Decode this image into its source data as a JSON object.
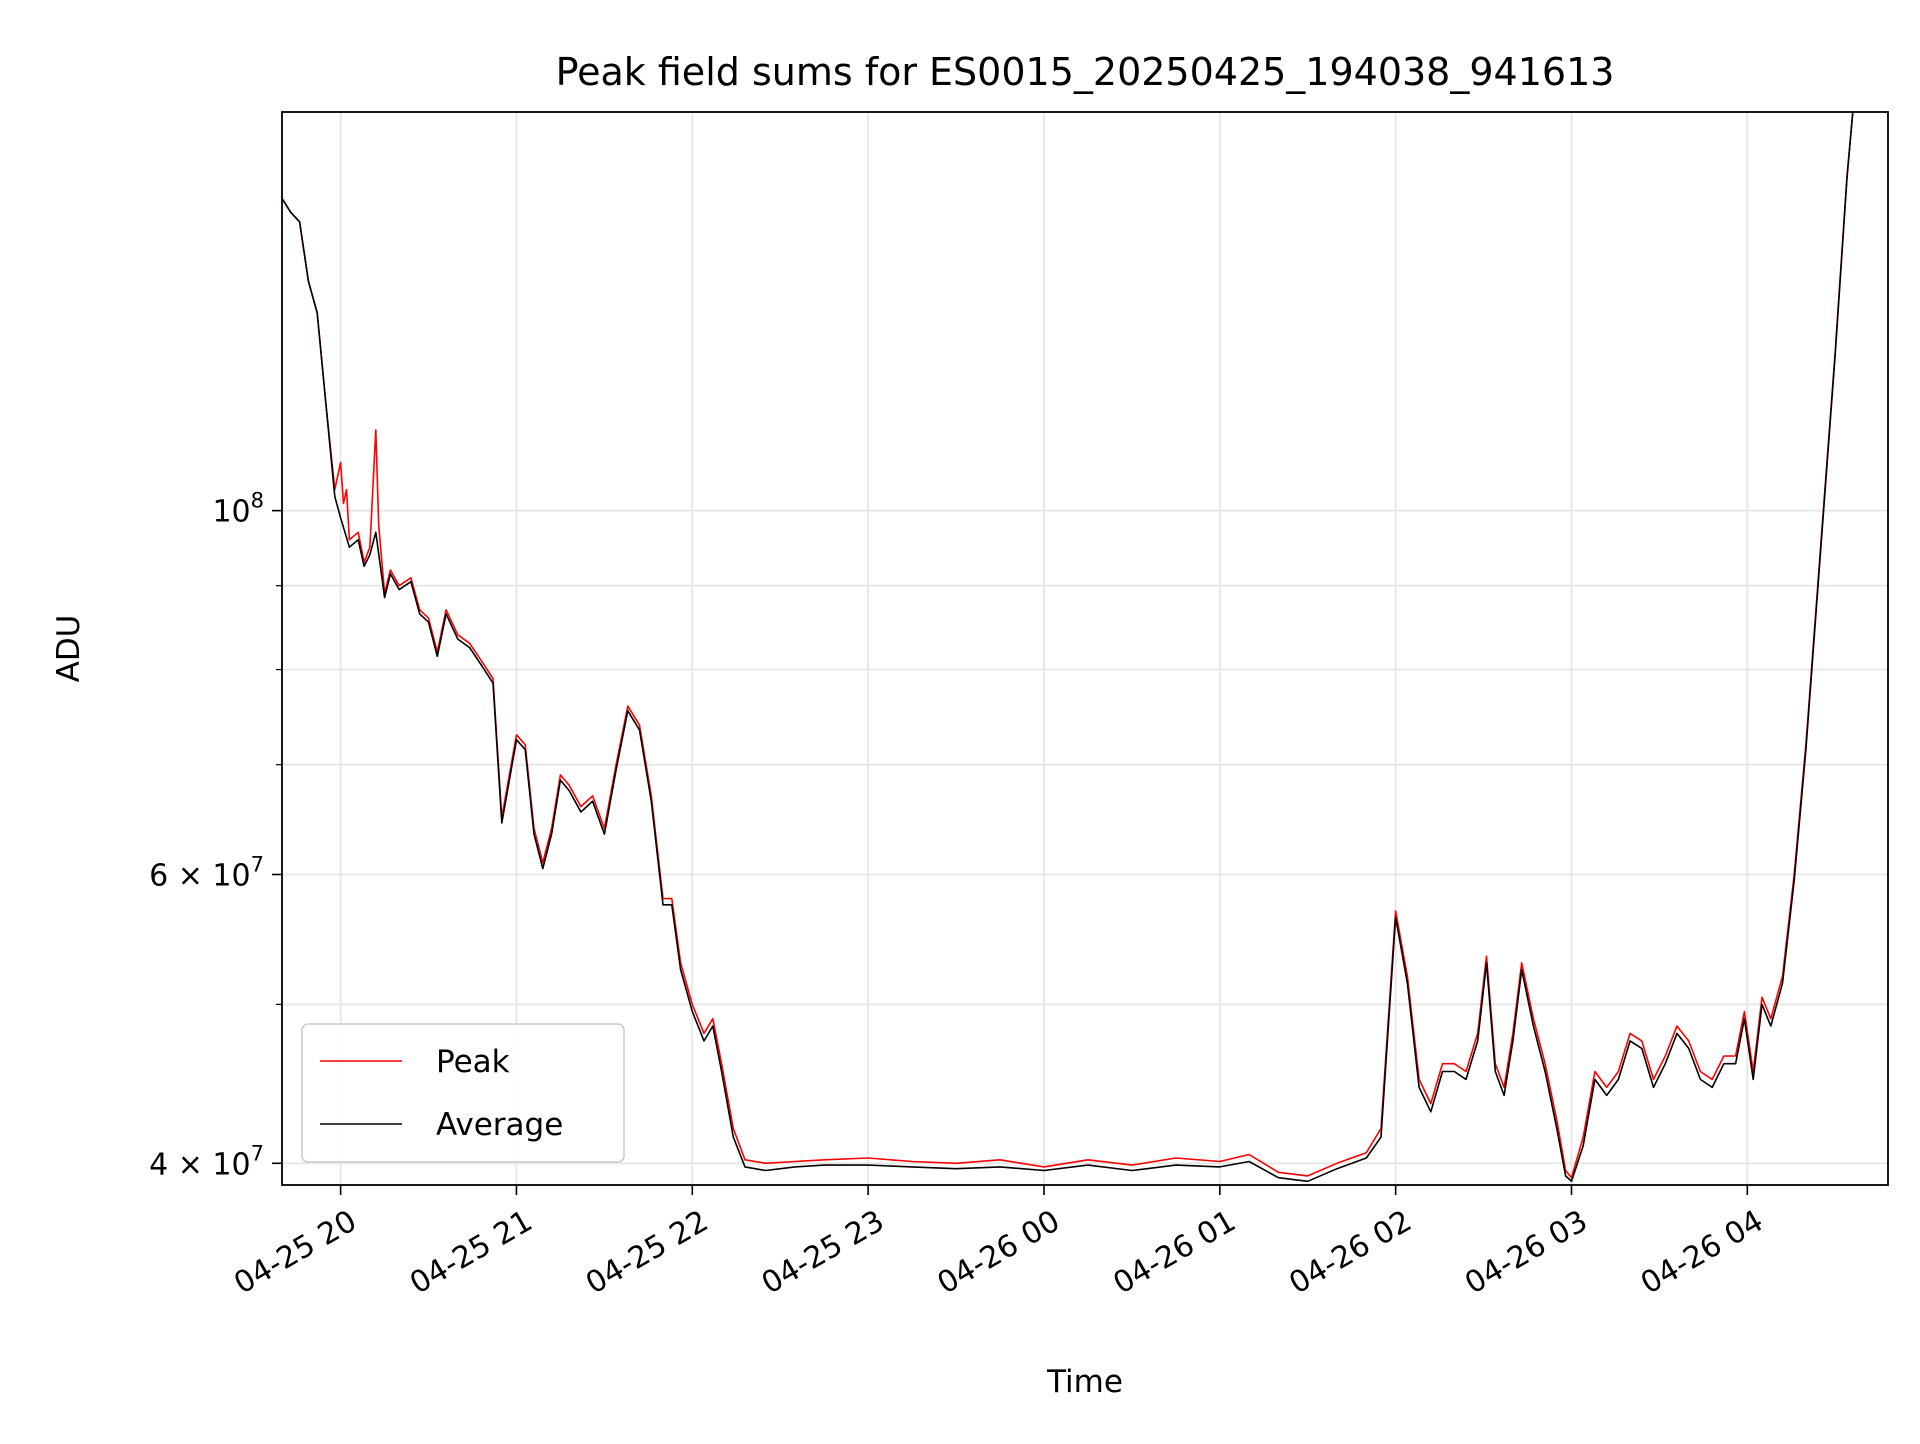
{
  "chart_data": {
    "type": "line",
    "title": "Peak field sums for ES0015_20250425_194038_941613",
    "xlabel": "Time",
    "ylabel": "ADU",
    "y_scale": "log",
    "ylim": [
      38800000,
      175000000
    ],
    "xlim": [
      "2025-04-25 19:40",
      "2025-04-26 04:48"
    ],
    "grid": true,
    "legend_position": "lower-left",
    "x_ticks": [
      {
        "t": "2025-04-25 20:00",
        "label": "04-25 20"
      },
      {
        "t": "2025-04-25 21:00",
        "label": "04-25 21"
      },
      {
        "t": "2025-04-25 22:00",
        "label": "04-25 22"
      },
      {
        "t": "2025-04-25 23:00",
        "label": "04-25 23"
      },
      {
        "t": "2025-04-26 00:00",
        "label": "04-26 00"
      },
      {
        "t": "2025-04-26 01:00",
        "label": "04-26 01"
      },
      {
        "t": "2025-04-26 02:00",
        "label": "04-26 02"
      },
      {
        "t": "2025-04-26 03:00",
        "label": "04-26 03"
      },
      {
        "t": "2025-04-26 04:00",
        "label": "04-26 04"
      }
    ],
    "y_major_ticks": [
      {
        "v": 40000000,
        "base": "4",
        "exp": "7"
      },
      {
        "v": 60000000,
        "base": "6",
        "exp": "7"
      },
      {
        "v": 100000000,
        "base": "",
        "exp": "8"
      }
    ],
    "y_minor_ticks": [
      50000000,
      70000000,
      80000000,
      90000000
    ],
    "series": [
      {
        "name": "Peak",
        "color": "#ff0000",
        "points": [
          [
            "2025-04-25 19:40",
            155000000
          ],
          [
            "2025-04-25 19:43",
            152000000
          ],
          [
            "2025-04-25 19:46",
            150000000
          ],
          [
            "2025-04-25 19:49",
            138000000
          ],
          [
            "2025-04-25 19:52",
            132000000
          ],
          [
            "2025-04-25 19:55",
            116000000
          ],
          [
            "2025-04-25 19:58",
            103000000
          ],
          [
            "2025-04-25 20:00",
            107000000
          ],
          [
            "2025-04-25 20:01",
            101000000
          ],
          [
            "2025-04-25 20:02",
            103000000
          ],
          [
            "2025-04-25 20:03",
            96000000
          ],
          [
            "2025-04-25 20:06",
            97000000
          ],
          [
            "2025-04-25 20:08",
            93000000
          ],
          [
            "2025-04-25 20:10",
            95000000
          ],
          [
            "2025-04-25 20:12",
            112000000
          ],
          [
            "2025-04-25 20:13",
            98000000
          ],
          [
            "2025-04-25 20:15",
            89000000
          ],
          [
            "2025-04-25 20:17",
            92000000
          ],
          [
            "2025-04-25 20:20",
            90000000
          ],
          [
            "2025-04-25 20:24",
            91000000
          ],
          [
            "2025-04-25 20:27",
            87000000
          ],
          [
            "2025-04-25 20:30",
            86000000
          ],
          [
            "2025-04-25 20:33",
            82000000
          ],
          [
            "2025-04-25 20:36",
            87000000
          ],
          [
            "2025-04-25 20:40",
            84000000
          ],
          [
            "2025-04-25 20:44",
            83000000
          ],
          [
            "2025-04-25 20:48",
            81000000
          ],
          [
            "2025-04-25 20:52",
            79000000
          ],
          [
            "2025-04-25 20:55",
            65000000
          ],
          [
            "2025-04-25 21:00",
            73000000
          ],
          [
            "2025-04-25 21:03",
            72000000
          ],
          [
            "2025-04-25 21:06",
            64000000
          ],
          [
            "2025-04-25 21:09",
            61000000
          ],
          [
            "2025-04-25 21:12",
            64000000
          ],
          [
            "2025-04-25 21:15",
            69000000
          ],
          [
            "2025-04-25 21:18",
            68000000
          ],
          [
            "2025-04-25 21:22",
            66000000
          ],
          [
            "2025-04-25 21:26",
            67000000
          ],
          [
            "2025-04-25 21:30",
            64000000
          ],
          [
            "2025-04-25 21:34",
            70000000
          ],
          [
            "2025-04-25 21:38",
            76000000
          ],
          [
            "2025-04-25 21:42",
            74000000
          ],
          [
            "2025-04-25 21:46",
            67000000
          ],
          [
            "2025-04-25 21:50",
            58000000
          ],
          [
            "2025-04-25 21:53",
            58000000
          ],
          [
            "2025-04-25 21:56",
            53000000
          ],
          [
            "2025-04-25 22:00",
            50000000
          ],
          [
            "2025-04-25 22:04",
            48000000
          ],
          [
            "2025-04-25 22:07",
            49000000
          ],
          [
            "2025-04-25 22:10",
            46000000
          ],
          [
            "2025-04-25 22:14",
            42000000
          ],
          [
            "2025-04-25 22:18",
            40200000
          ],
          [
            "2025-04-25 22:25",
            40000000
          ],
          [
            "2025-04-25 22:35",
            40100000
          ],
          [
            "2025-04-25 22:45",
            40200000
          ],
          [
            "2025-04-25 23:00",
            40300000
          ],
          [
            "2025-04-25 23:15",
            40100000
          ],
          [
            "2025-04-25 23:30",
            40000000
          ],
          [
            "2025-04-25 23:45",
            40200000
          ],
          [
            "2025-04-26 00:00",
            39800000
          ],
          [
            "2025-04-26 00:15",
            40200000
          ],
          [
            "2025-04-26 00:30",
            39900000
          ],
          [
            "2025-04-26 00:45",
            40300000
          ],
          [
            "2025-04-26 01:00",
            40100000
          ],
          [
            "2025-04-26 01:10",
            40500000
          ],
          [
            "2025-04-26 01:20",
            39500000
          ],
          [
            "2025-04-26 01:30",
            39300000
          ],
          [
            "2025-04-26 01:40",
            40000000
          ],
          [
            "2025-04-26 01:50",
            40600000
          ],
          [
            "2025-04-26 01:55",
            42000000
          ],
          [
            "2025-04-26 02:00",
            57000000
          ],
          [
            "2025-04-26 02:04",
            52000000
          ],
          [
            "2025-04-26 02:08",
            45000000
          ],
          [
            "2025-04-26 02:12",
            43500000
          ],
          [
            "2025-04-26 02:16",
            46000000
          ],
          [
            "2025-04-26 02:20",
            46000000
          ],
          [
            "2025-04-26 02:24",
            45500000
          ],
          [
            "2025-04-26 02:28",
            48000000
          ],
          [
            "2025-04-26 02:31",
            53500000
          ],
          [
            "2025-04-26 02:34",
            46000000
          ],
          [
            "2025-04-26 02:37",
            44500000
          ],
          [
            "2025-04-26 02:40",
            48000000
          ],
          [
            "2025-04-26 02:43",
            53000000
          ],
          [
            "2025-04-26 02:47",
            49000000
          ],
          [
            "2025-04-26 02:51",
            46000000
          ],
          [
            "2025-04-26 02:55",
            42500000
          ],
          [
            "2025-04-26 02:58",
            39600000
          ],
          [
            "2025-04-26 03:00",
            39200000
          ],
          [
            "2025-04-26 03:04",
            41500000
          ],
          [
            "2025-04-26 03:08",
            45500000
          ],
          [
            "2025-04-26 03:12",
            44500000
          ],
          [
            "2025-04-26 03:16",
            45500000
          ],
          [
            "2025-04-26 03:20",
            48000000
          ],
          [
            "2025-04-26 03:24",
            47500000
          ],
          [
            "2025-04-26 03:28",
            45000000
          ],
          [
            "2025-04-26 03:32",
            46500000
          ],
          [
            "2025-04-26 03:36",
            48500000
          ],
          [
            "2025-04-26 03:40",
            47500000
          ],
          [
            "2025-04-26 03:44",
            45500000
          ],
          [
            "2025-04-26 03:48",
            45000000
          ],
          [
            "2025-04-26 03:52",
            46500000
          ],
          [
            "2025-04-26 03:56",
            46500000
          ],
          [
            "2025-04-26 03:59",
            49500000
          ],
          [
            "2025-04-26 04:02",
            45500000
          ],
          [
            "2025-04-26 04:05",
            50500000
          ],
          [
            "2025-04-26 04:08",
            49000000
          ],
          [
            "2025-04-26 04:12",
            52000000
          ],
          [
            "2025-04-26 04:16",
            60000000
          ],
          [
            "2025-04-26 04:20",
            72000000
          ],
          [
            "2025-04-26 04:25",
            95000000
          ],
          [
            "2025-04-26 04:30",
            125000000
          ],
          [
            "2025-04-26 04:34",
            160000000
          ],
          [
            "2025-04-26 04:36",
            175000000
          ]
        ]
      },
      {
        "name": "Average",
        "color": "#000000",
        "points": [
          [
            "2025-04-25 19:40",
            155000000
          ],
          [
            "2025-04-25 19:43",
            152000000
          ],
          [
            "2025-04-25 19:46",
            150000000
          ],
          [
            "2025-04-25 19:49",
            138000000
          ],
          [
            "2025-04-25 19:52",
            132000000
          ],
          [
            "2025-04-25 19:55",
            116000000
          ],
          [
            "2025-04-25 19:58",
            102000000
          ],
          [
            "2025-04-25 20:00",
            99000000
          ],
          [
            "2025-04-25 20:03",
            95000000
          ],
          [
            "2025-04-25 20:06",
            96000000
          ],
          [
            "2025-04-25 20:08",
            92500000
          ],
          [
            "2025-04-25 20:10",
            94000000
          ],
          [
            "2025-04-25 20:12",
            97000000
          ],
          [
            "2025-04-25 20:15",
            88500000
          ],
          [
            "2025-04-25 20:17",
            91500000
          ],
          [
            "2025-04-25 20:20",
            89500000
          ],
          [
            "2025-04-25 20:24",
            90500000
          ],
          [
            "2025-04-25 20:27",
            86500000
          ],
          [
            "2025-04-25 20:30",
            85500000
          ],
          [
            "2025-04-25 20:33",
            81500000
          ],
          [
            "2025-04-25 20:36",
            86500000
          ],
          [
            "2025-04-25 20:40",
            83500000
          ],
          [
            "2025-04-25 20:44",
            82500000
          ],
          [
            "2025-04-25 20:48",
            80500000
          ],
          [
            "2025-04-25 20:52",
            78500000
          ],
          [
            "2025-04-25 20:55",
            64500000
          ],
          [
            "2025-04-25 21:00",
            72500000
          ],
          [
            "2025-04-25 21:03",
            71500000
          ],
          [
            "2025-04-25 21:06",
            63500000
          ],
          [
            "2025-04-25 21:09",
            60500000
          ],
          [
            "2025-04-25 21:12",
            63500000
          ],
          [
            "2025-04-25 21:15",
            68500000
          ],
          [
            "2025-04-25 21:18",
            67500000
          ],
          [
            "2025-04-25 21:22",
            65500000
          ],
          [
            "2025-04-25 21:26",
            66500000
          ],
          [
            "2025-04-25 21:30",
            63500000
          ],
          [
            "2025-04-25 21:34",
            69500000
          ],
          [
            "2025-04-25 21:38",
            75500000
          ],
          [
            "2025-04-25 21:42",
            73500000
          ],
          [
            "2025-04-25 21:46",
            66500000
          ],
          [
            "2025-04-25 21:50",
            57500000
          ],
          [
            "2025-04-25 21:53",
            57500000
          ],
          [
            "2025-04-25 21:56",
            52500000
          ],
          [
            "2025-04-25 22:00",
            49500000
          ],
          [
            "2025-04-25 22:04",
            47500000
          ],
          [
            "2025-04-25 22:07",
            48500000
          ],
          [
            "2025-04-25 22:10",
            45500000
          ],
          [
            "2025-04-25 22:14",
            41500000
          ],
          [
            "2025-04-25 22:18",
            39800000
          ],
          [
            "2025-04-25 22:25",
            39600000
          ],
          [
            "2025-04-25 22:35",
            39800000
          ],
          [
            "2025-04-25 22:45",
            39900000
          ],
          [
            "2025-04-25 23:00",
            39900000
          ],
          [
            "2025-04-25 23:15",
            39800000
          ],
          [
            "2025-04-25 23:30",
            39700000
          ],
          [
            "2025-04-25 23:45",
            39800000
          ],
          [
            "2025-04-26 00:00",
            39600000
          ],
          [
            "2025-04-26 00:15",
            39900000
          ],
          [
            "2025-04-26 00:30",
            39600000
          ],
          [
            "2025-04-26 00:45",
            39900000
          ],
          [
            "2025-04-26 01:00",
            39800000
          ],
          [
            "2025-04-26 01:10",
            40100000
          ],
          [
            "2025-04-26 01:20",
            39200000
          ],
          [
            "2025-04-26 01:30",
            39000000
          ],
          [
            "2025-04-26 01:40",
            39700000
          ],
          [
            "2025-04-26 01:50",
            40300000
          ],
          [
            "2025-04-26 01:55",
            41500000
          ],
          [
            "2025-04-26 02:00",
            56500000
          ],
          [
            "2025-04-26 02:04",
            51500000
          ],
          [
            "2025-04-26 02:08",
            44500000
          ],
          [
            "2025-04-26 02:12",
            43000000
          ],
          [
            "2025-04-26 02:16",
            45500000
          ],
          [
            "2025-04-26 02:20",
            45500000
          ],
          [
            "2025-04-26 02:24",
            45000000
          ],
          [
            "2025-04-26 02:28",
            47500000
          ],
          [
            "2025-04-26 02:31",
            53000000
          ],
          [
            "2025-04-26 02:34",
            45500000
          ],
          [
            "2025-04-26 02:37",
            44000000
          ],
          [
            "2025-04-26 02:40",
            47500000
          ],
          [
            "2025-04-26 02:43",
            52500000
          ],
          [
            "2025-04-26 02:47",
            48500000
          ],
          [
            "2025-04-26 02:51",
            45500000
          ],
          [
            "2025-04-26 02:55",
            42000000
          ],
          [
            "2025-04-26 02:58",
            39300000
          ],
          [
            "2025-04-26 03:00",
            39000000
          ],
          [
            "2025-04-26 03:04",
            41000000
          ],
          [
            "2025-04-26 03:08",
            45000000
          ],
          [
            "2025-04-26 03:12",
            44000000
          ],
          [
            "2025-04-26 03:16",
            45000000
          ],
          [
            "2025-04-26 03:20",
            47500000
          ],
          [
            "2025-04-26 03:24",
            47000000
          ],
          [
            "2025-04-26 03:28",
            44500000
          ],
          [
            "2025-04-26 03:32",
            46000000
          ],
          [
            "2025-04-26 03:36",
            48000000
          ],
          [
            "2025-04-26 03:40",
            47000000
          ],
          [
            "2025-04-26 03:44",
            45000000
          ],
          [
            "2025-04-26 03:48",
            44500000
          ],
          [
            "2025-04-26 03:52",
            46000000
          ],
          [
            "2025-04-26 03:56",
            46000000
          ],
          [
            "2025-04-26 03:59",
            49000000
          ],
          [
            "2025-04-26 04:02",
            45000000
          ],
          [
            "2025-04-26 04:05",
            50000000
          ],
          [
            "2025-04-26 04:08",
            48500000
          ],
          [
            "2025-04-26 04:12",
            51500000
          ],
          [
            "2025-04-26 04:16",
            59500000
          ],
          [
            "2025-04-26 04:20",
            71500000
          ],
          [
            "2025-04-26 04:25",
            94500000
          ],
          [
            "2025-04-26 04:30",
            124500000
          ],
          [
            "2025-04-26 04:34",
            159500000
          ],
          [
            "2025-04-26 04:36",
            175000000
          ]
        ]
      }
    ]
  }
}
